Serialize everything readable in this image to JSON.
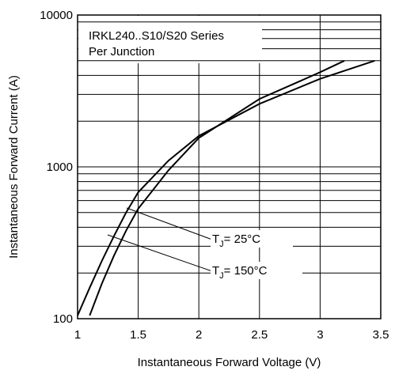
{
  "chart_data": {
    "type": "line",
    "xlabel": "Instantaneous Forward Voltage (V)",
    "ylabel": "Instantaneous Forward Current (A)",
    "legend_lines": [
      "IRKL240..S10/S20 Series",
      "Per Junction"
    ],
    "xlim": [
      1,
      3.5
    ],
    "xticks": [
      1,
      1.5,
      2,
      2.5,
      3,
      3.5
    ],
    "ylim": [
      100,
      10000
    ],
    "yticks": [
      100,
      1000,
      10000
    ],
    "log_y": true,
    "grid": true,
    "yminor": [
      200,
      300,
      400,
      500,
      600,
      700,
      800,
      900,
      2000,
      3000,
      4000,
      5000,
      6000,
      7000,
      8000,
      9000
    ],
    "series": [
      {
        "label": {
          "t": "T",
          "sub": "J",
          "rest": "= 25°C"
        },
        "color": "#000000",
        "x": [
          1.1,
          1.2,
          1.3,
          1.4,
          1.5,
          1.75,
          2.0,
          2.5,
          3.0,
          3.2
        ],
        "values": [
          105,
          170,
          260,
          380,
          530,
          950,
          1550,
          2800,
          4200,
          5000
        ]
      },
      {
        "label": {
          "t": "T",
          "sub": "J",
          "rest": "= 150°C"
        },
        "color": "#000000",
        "x": [
          1.0,
          1.1,
          1.2,
          1.3,
          1.4,
          1.5,
          1.75,
          2.0,
          2.5,
          3.0,
          3.45
        ],
        "values": [
          105,
          160,
          240,
          350,
          500,
          680,
          1100,
          1600,
          2600,
          3800,
          5000
        ]
      }
    ]
  }
}
